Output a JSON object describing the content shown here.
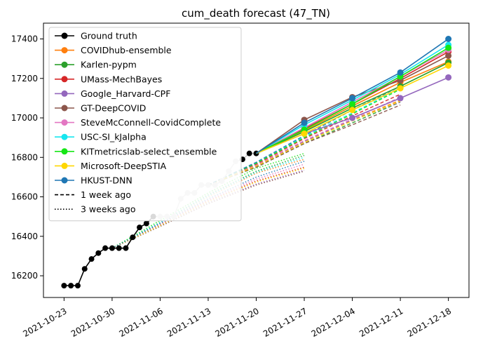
{
  "chart_data": {
    "type": "line",
    "title": "cum_death forecast (47_TN)",
    "xlabel": "",
    "ylabel": "",
    "x_ticks": [
      "2021-10-23",
      "2021-10-30",
      "2021-11-06",
      "2021-11-13",
      "2021-11-20",
      "2021-11-27",
      "2021-12-04",
      "2021-12-11",
      "2021-12-18"
    ],
    "y_ticks": [
      16200,
      16400,
      16600,
      16800,
      17000,
      17200,
      17400
    ],
    "xlim": [
      "2021-10-20",
      "2021-12-21"
    ],
    "ylim": [
      16090,
      17480
    ],
    "grid": false,
    "legend_position": "top-left",
    "ground_truth": {
      "name": "Ground truth",
      "color": "#000000",
      "points": [
        [
          "2021-10-23",
          16150
        ],
        [
          "2021-10-24",
          16150
        ],
        [
          "2021-10-25",
          16150
        ],
        [
          "2021-10-26",
          16235
        ],
        [
          "2021-10-27",
          16285
        ],
        [
          "2021-10-28",
          16315
        ],
        [
          "2021-10-29",
          16340
        ],
        [
          "2021-10-30",
          16340
        ],
        [
          "2021-10-31",
          16340
        ],
        [
          "2021-11-01",
          16340
        ],
        [
          "2021-11-02",
          16395
        ],
        [
          "2021-11-03",
          16445
        ],
        [
          "2021-11-04",
          16465
        ],
        [
          "2021-11-05",
          16500
        ],
        [
          "2021-11-06",
          16500
        ],
        [
          "2021-11-07",
          16500
        ],
        [
          "2021-11-08",
          16500
        ],
        [
          "2021-11-09",
          16590
        ],
        [
          "2021-11-10",
          16620
        ],
        [
          "2021-11-11",
          16620
        ],
        [
          "2021-11-12",
          16660
        ],
        [
          "2021-11-13",
          16660
        ],
        [
          "2021-11-14",
          16660
        ],
        [
          "2021-11-15",
          16680
        ],
        [
          "2021-11-16",
          16730
        ],
        [
          "2021-11-17",
          16780
        ],
        [
          "2021-11-18",
          16790
        ],
        [
          "2021-11-19",
          16820
        ],
        [
          "2021-11-20",
          16820
        ]
      ],
      "faded_from": "2021-11-05"
    },
    "series": [
      {
        "name": "COVIDhub-ensemble",
        "color": "#ff7f0e",
        "values": [
          [
            "2021-11-20",
            16820
          ],
          [
            "2021-11-27",
            16935
          ],
          [
            "2021-12-04",
            17060
          ],
          [
            "2021-12-11",
            17180
          ],
          [
            "2021-12-18",
            17285
          ]
        ]
      },
      {
        "name": "Karlen-pypm",
        "color": "#2ca02c",
        "values": [
          [
            "2021-11-20",
            16820
          ],
          [
            "2021-11-27",
            16930
          ],
          [
            "2021-12-04",
            17050
          ],
          [
            "2021-12-11",
            17160
          ],
          [
            "2021-12-18",
            17280
          ]
        ]
      },
      {
        "name": "UMass-MechBayes",
        "color": "#d62728",
        "values": [
          [
            "2021-11-20",
            16820
          ],
          [
            "2021-11-27",
            16945
          ],
          [
            "2021-12-04",
            17070
          ],
          [
            "2021-12-11",
            17200
          ],
          [
            "2021-12-18",
            17335
          ]
        ]
      },
      {
        "name": "Google_Harvard-CPF",
        "color": "#9467bd",
        "values": [
          [
            "2021-11-20",
            16820
          ],
          [
            "2021-11-27",
            16920
          ],
          [
            "2021-12-04",
            17000
          ],
          [
            "2021-12-11",
            17100
          ],
          [
            "2021-12-18",
            17205
          ]
        ]
      },
      {
        "name": "GT-DeepCOVID",
        "color": "#8c564b",
        "values": [
          [
            "2021-11-20",
            16820
          ],
          [
            "2021-11-27",
            16990
          ],
          [
            "2021-12-04",
            17105
          ],
          [
            "2021-12-11",
            17190
          ],
          [
            "2021-12-18",
            17315
          ]
        ]
      },
      {
        "name": "SteveMcConnell-CovidComplete",
        "color": "#e377c2",
        "values": [
          [
            "2021-11-20",
            16820
          ],
          [
            "2021-11-27",
            16950
          ],
          [
            "2021-12-04",
            17080
          ],
          [
            "2021-12-11",
            17210
          ],
          [
            "2021-12-18",
            17345
          ]
        ]
      },
      {
        "name": "USC-SI_kJalpha",
        "color": "#17e6ef",
        "values": [
          [
            "2021-11-20",
            16820
          ],
          [
            "2021-11-27",
            16965
          ],
          [
            "2021-12-04",
            17090
          ],
          [
            "2021-12-11",
            17220
          ],
          [
            "2021-12-18",
            17370
          ]
        ]
      },
      {
        "name": "KITmetricslab-select_ensemble",
        "color": "#16e616",
        "values": [
          [
            "2021-11-20",
            16820
          ],
          [
            "2021-11-27",
            16940
          ],
          [
            "2021-12-04",
            17070
          ],
          [
            "2021-12-11",
            17210
          ],
          [
            "2021-12-18",
            17355
          ]
        ]
      },
      {
        "name": "Microsoft-DeepSTIA",
        "color": "#ffd700",
        "values": [
          [
            "2021-11-20",
            16820
          ],
          [
            "2021-11-27",
            16920
          ],
          [
            "2021-12-04",
            17040
          ],
          [
            "2021-12-11",
            17150
          ],
          [
            "2021-12-18",
            17265
          ]
        ]
      },
      {
        "name": "HKUST-DNN",
        "color": "#1f77b4",
        "values": [
          [
            "2021-11-20",
            16820
          ],
          [
            "2021-11-27",
            16975
          ],
          [
            "2021-12-04",
            17100
          ],
          [
            "2021-12-11",
            17230
          ],
          [
            "2021-12-18",
            17400
          ]
        ]
      }
    ],
    "older_forecasts": {
      "one_week_ago": {
        "label": "1 week ago",
        "style": "dashed",
        "start": [
          "2021-11-13",
          16660
        ],
        "ends": [
          {
            "color": "#ff7f0e",
            "values": [
              [
                "2021-11-20",
                16760
              ],
              [
                "2021-11-27",
                16880
              ],
              [
                "2021-12-04",
                16990
              ],
              [
                "2021-12-11",
                17090
              ]
            ]
          },
          {
            "color": "#2ca02c",
            "values": [
              [
                "2021-11-20",
                16750
              ],
              [
                "2021-11-27",
                16870
              ],
              [
                "2021-12-04",
                16975
              ],
              [
                "2021-12-11",
                17080
              ]
            ]
          },
          {
            "color": "#d62728",
            "values": [
              [
                "2021-11-20",
                16765
              ],
              [
                "2021-11-27",
                16895
              ],
              [
                "2021-12-04",
                17010
              ],
              [
                "2021-12-11",
                17120
              ]
            ]
          },
          {
            "color": "#9467bd",
            "values": [
              [
                "2021-11-20",
                16755
              ],
              [
                "2021-11-27",
                16880
              ],
              [
                "2021-12-04",
                16990
              ],
              [
                "2021-12-11",
                17080
              ]
            ]
          },
          {
            "color": "#8c564b",
            "values": [
              [
                "2021-11-20",
                16750
              ],
              [
                "2021-11-27",
                16870
              ],
              [
                "2021-12-04",
                16965
              ],
              [
                "2021-12-11",
                17065
              ]
            ]
          },
          {
            "color": "#e377c2",
            "values": [
              [
                "2021-11-20",
                16760
              ],
              [
                "2021-11-27",
                16885
              ],
              [
                "2021-12-04",
                16995
              ],
              [
                "2021-12-11",
                17105
              ]
            ]
          },
          {
            "color": "#17e6ef",
            "values": [
              [
                "2021-11-20",
                16770
              ],
              [
                "2021-11-27",
                16905
              ],
              [
                "2021-12-04",
                17025
              ],
              [
                "2021-12-11",
                17150
              ]
            ]
          },
          {
            "color": "#16e616",
            "values": [
              [
                "2021-11-20",
                16770
              ],
              [
                "2021-11-27",
                16900
              ],
              [
                "2021-12-04",
                17020
              ],
              [
                "2021-12-11",
                17145
              ]
            ]
          },
          {
            "color": "#ffd700",
            "values": [
              [
                "2021-11-20",
                16755
              ],
              [
                "2021-11-27",
                16875
              ],
              [
                "2021-12-04",
                16985
              ],
              [
                "2021-12-11",
                17085
              ]
            ]
          },
          {
            "color": "#1f77b4",
            "values": [
              [
                "2021-11-20",
                16775
              ],
              [
                "2021-11-27",
                16910
              ],
              [
                "2021-12-04",
                17040
              ],
              [
                "2021-12-11",
                17160
              ]
            ]
          }
        ]
      },
      "three_weeks_ago": {
        "label": "3 weeks ago",
        "style": "dotted",
        "start": [
          "2021-10-30",
          16340
        ],
        "ends": [
          {
            "color": "#ff7f0e",
            "values": [
              [
                "2021-11-06",
                16470
              ],
              [
                "2021-11-13",
                16600
              ],
              [
                "2021-11-20",
                16720
              ],
              [
                "2021-11-27",
                16790
              ]
            ]
          },
          {
            "color": "#2ca02c",
            "values": [
              [
                "2021-11-06",
                16470
              ],
              [
                "2021-11-13",
                16610
              ],
              [
                "2021-11-20",
                16730
              ],
              [
                "2021-11-27",
                16810
              ]
            ]
          },
          {
            "color": "#d62728",
            "values": [
              [
                "2021-11-06",
                16460
              ],
              [
                "2021-11-13",
                16580
              ],
              [
                "2021-11-20",
                16680
              ],
              [
                "2021-11-27",
                16750
              ]
            ]
          },
          {
            "color": "#9467bd",
            "values": [
              [
                "2021-11-06",
                16455
              ],
              [
                "2021-11-13",
                16570
              ],
              [
                "2021-11-20",
                16665
              ],
              [
                "2021-11-27",
                16735
              ]
            ]
          },
          {
            "color": "#8c564b",
            "values": [
              [
                "2021-11-06",
                16450
              ],
              [
                "2021-11-13",
                16565
              ],
              [
                "2021-11-20",
                16660
              ],
              [
                "2021-11-27",
                16730
              ]
            ]
          },
          {
            "color": "#e377c2",
            "values": [
              [
                "2021-11-06",
                16460
              ],
              [
                "2021-11-13",
                16585
              ],
              [
                "2021-11-20",
                16690
              ],
              [
                "2021-11-27",
                16765
              ]
            ]
          },
          {
            "color": "#17e6ef",
            "values": [
              [
                "2021-11-06",
                16470
              ],
              [
                "2021-11-13",
                16605
              ],
              [
                "2021-11-20",
                16725
              ],
              [
                "2021-11-27",
                16800
              ]
            ]
          },
          {
            "color": "#16e616",
            "values": [
              [
                "2021-11-06",
                16480
              ],
              [
                "2021-11-13",
                16620
              ],
              [
                "2021-11-20",
                16745
              ],
              [
                "2021-11-27",
                16820
              ]
            ]
          },
          {
            "color": "#ffd700",
            "values": [
              [
                "2021-11-06",
                16455
              ],
              [
                "2021-11-13",
                16575
              ],
              [
                "2021-11-20",
                16675
              ],
              [
                "2021-11-27",
                16745
              ]
            ]
          },
          {
            "color": "#1f77b4",
            "values": [
              [
                "2021-11-06",
                16465
              ],
              [
                "2021-11-13",
                16590
              ],
              [
                "2021-11-20",
                16700
              ],
              [
                "2021-11-27",
                16780
              ]
            ]
          }
        ]
      }
    },
    "legend": [
      {
        "label": "Ground truth",
        "color": "#000000",
        "style": "solid-marker"
      },
      {
        "label": "COVIDhub-ensemble",
        "color": "#ff7f0e",
        "style": "solid-marker"
      },
      {
        "label": "Karlen-pypm",
        "color": "#2ca02c",
        "style": "solid-marker"
      },
      {
        "label": "UMass-MechBayes",
        "color": "#d62728",
        "style": "solid-marker"
      },
      {
        "label": "Google_Harvard-CPF",
        "color": "#9467bd",
        "style": "solid-marker"
      },
      {
        "label": "GT-DeepCOVID",
        "color": "#8c564b",
        "style": "solid-marker"
      },
      {
        "label": "SteveMcConnell-CovidComplete",
        "color": "#e377c2",
        "style": "solid-marker"
      },
      {
        "label": "USC-SI_kJalpha",
        "color": "#17e6ef",
        "style": "solid-marker"
      },
      {
        "label": "KITmetricslab-select_ensemble",
        "color": "#16e616",
        "style": "solid-marker"
      },
      {
        "label": "Microsoft-DeepSTIA",
        "color": "#ffd700",
        "style": "solid-marker"
      },
      {
        "label": "HKUST-DNN",
        "color": "#1f77b4",
        "style": "solid-marker"
      },
      {
        "label": "1 week ago",
        "color": "#000000",
        "style": "dashed"
      },
      {
        "label": "3 weeks ago",
        "color": "#000000",
        "style": "dotted"
      }
    ]
  }
}
